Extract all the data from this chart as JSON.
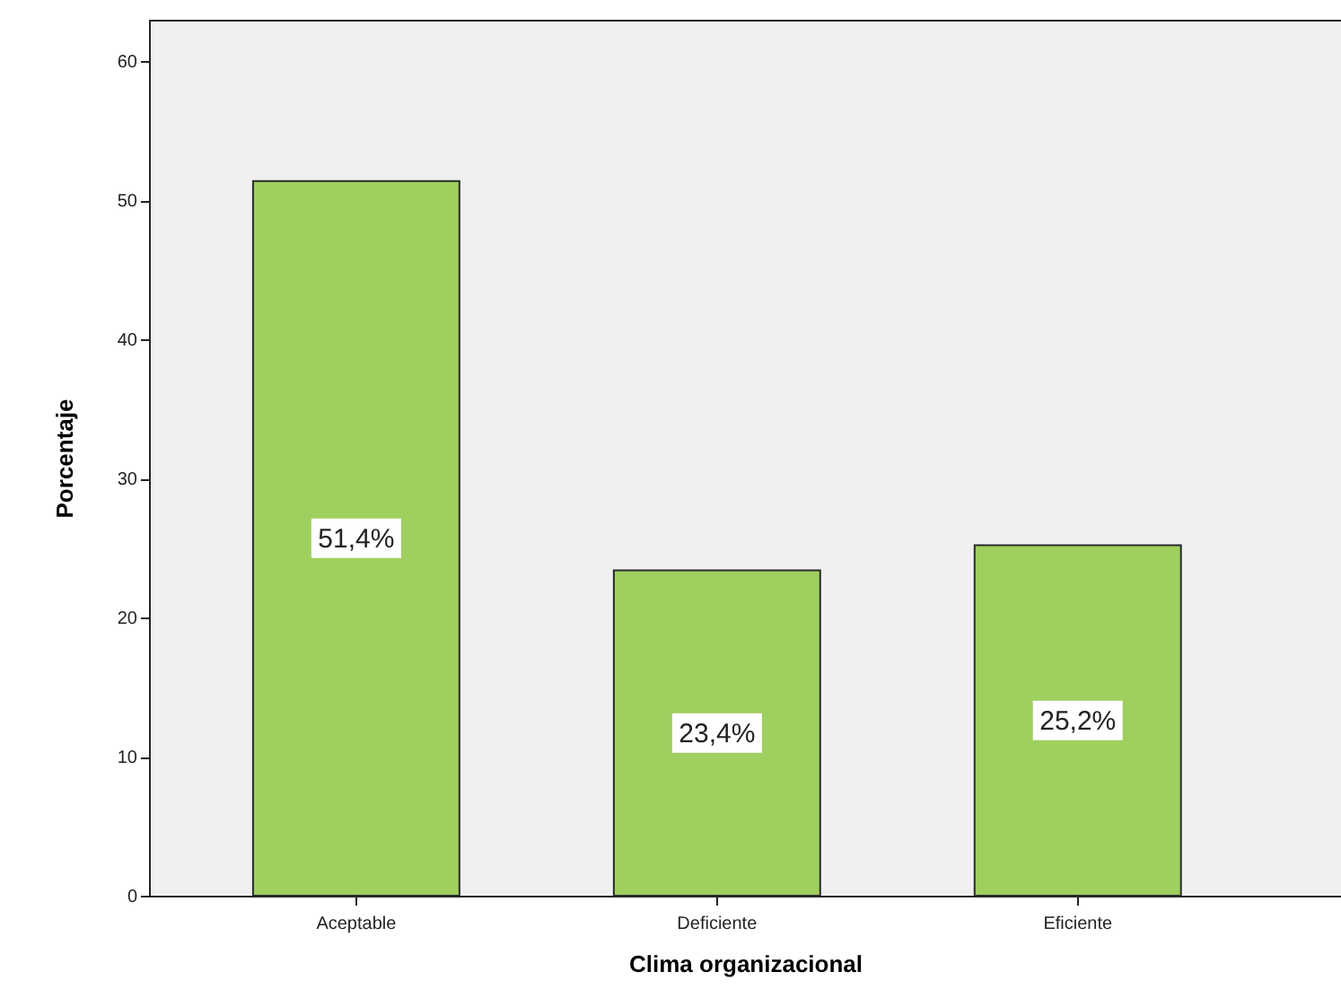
{
  "chart_data": {
    "type": "bar",
    "xlabel": "Clima organizacional",
    "ylabel": "Porcentaje",
    "categories": [
      "Aceptable",
      "Deficiente",
      "Eficiente"
    ],
    "values": [
      51.4,
      23.4,
      25.2
    ],
    "color": "#9fcf5f",
    "value_labels": [
      "51,4%",
      "23,4%",
      "25,2%"
    ],
    "ylim": [
      0,
      63
    ],
    "yticks": [
      0,
      10,
      20,
      30,
      40,
      50,
      60
    ],
    "grid": false
  }
}
